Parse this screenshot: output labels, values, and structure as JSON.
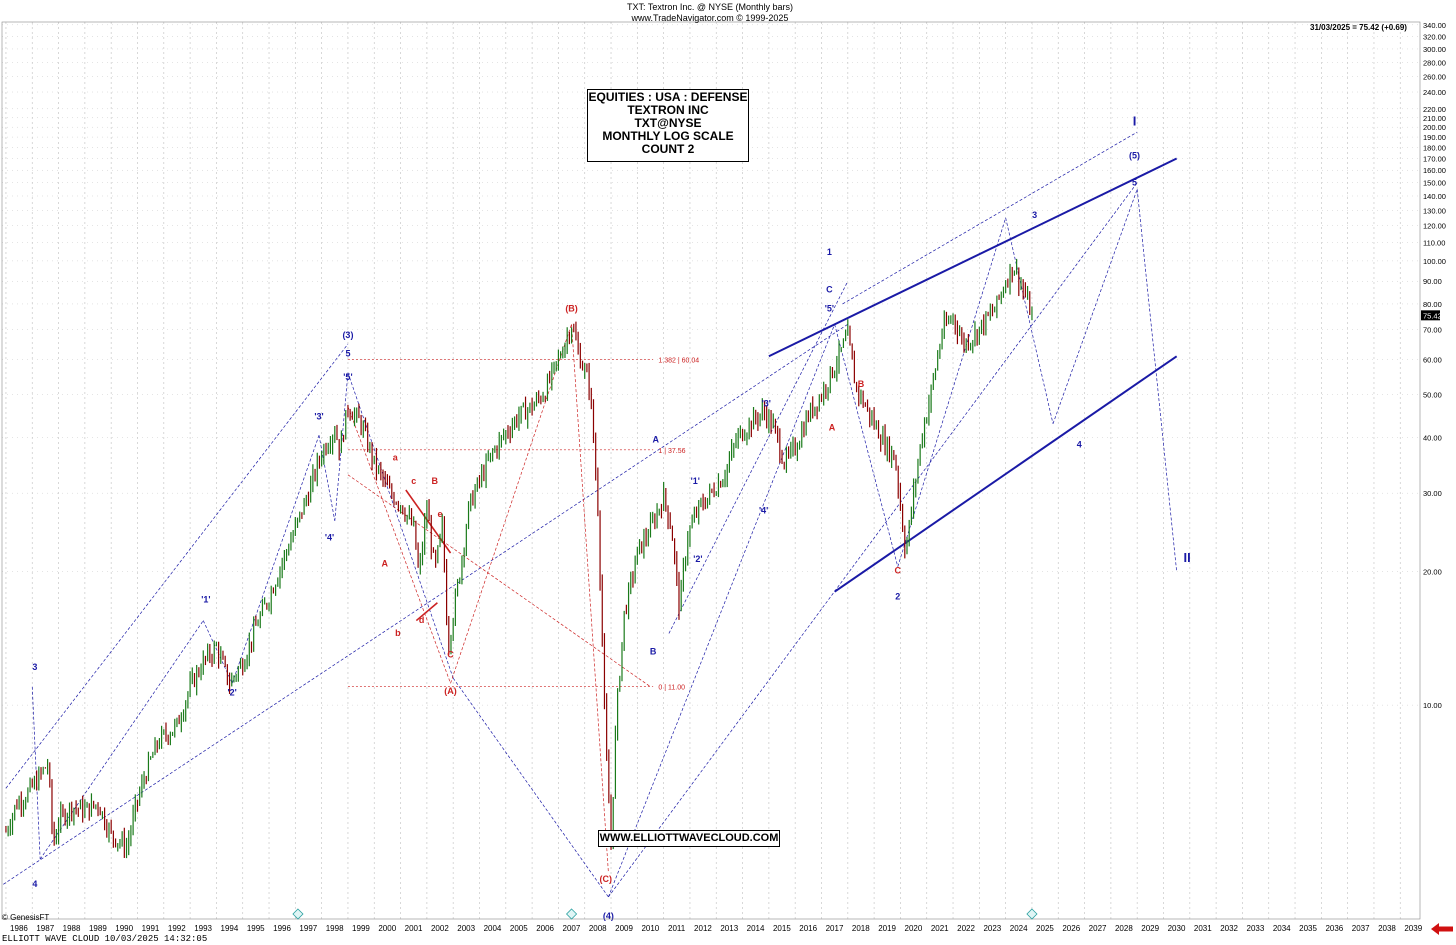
{
  "header": {
    "line1": "TXT:  Textron Inc. @ NYSE  (Monthly bars)",
    "line2": "www.TradeNavigator.com © 1999-2025",
    "last_price_line": "31/03/2025 = 75.42 (+0.69)"
  },
  "info_box": {
    "lines": [
      "EQUITIES : USA : DEFENSE",
      "TEXTRON INC",
      "TXT@NYSE",
      "MONTHLY LOG SCALE",
      "COUNT 2"
    ]
  },
  "website_label": "WWW.ELLIOTTWAVECLOUD.COM",
  "footer": {
    "credit": "© GenesisFT",
    "status": "ELLIOTT WAVE CLOUD   10/03/2025 14:32:05"
  },
  "colors": {
    "price_up": "#1a7a1a",
    "price_down": "#8b0000",
    "wave_blue": "#1a1aa6",
    "wave_red": "#cc2222",
    "grid": "#c8c8c8"
  },
  "icons": [
    "genesis-s-marker-icon",
    "red-left-arrow-icon"
  ],
  "chart_data": {
    "type": "line",
    "scale": "log",
    "x_ticks": [
      "1986",
      "1987",
      "1988",
      "1989",
      "1990",
      "1991",
      "1992",
      "1993",
      "1994",
      "1995",
      "1996",
      "1997",
      "1998",
      "1999",
      "2000",
      "2001",
      "2002",
      "2003",
      "2004",
      "2005",
      "2006",
      "2007",
      "2008",
      "2009",
      "2010",
      "2011",
      "2012",
      "2013",
      "2014",
      "2015",
      "2016",
      "2017",
      "2018",
      "2019",
      "2020",
      "2021",
      "2022",
      "2023",
      "2024",
      "2025",
      "2026",
      "2027",
      "2028",
      "2029",
      "2030",
      "2031",
      "2032",
      "2033",
      "2034",
      "2035",
      "2036",
      "2037",
      "2038",
      "2039"
    ],
    "y_ticks": [
      10,
      20,
      30,
      40,
      50,
      60,
      70,
      80,
      90,
      100,
      110,
      120,
      130,
      140,
      150,
      160,
      170,
      180,
      190,
      200,
      210,
      220,
      240,
      260,
      280,
      300,
      320,
      340
    ],
    "y_tick_labels": [
      "10.00",
      "20.00",
      "30.00",
      "40.00",
      "50.00",
      "60.00",
      "70.00",
      "80.00",
      "90.00",
      "100.00",
      "110.00",
      "120.00",
      "130.00",
      "140.00",
      "150.00",
      "160.00",
      "170.00",
      "180.00",
      "190.00",
      "200.00",
      "210.00",
      "220.00",
      "240.00",
      "260.00",
      "280.00",
      "300.00",
      "320.00",
      "340.00"
    ],
    "ylim": [
      3.3,
      345
    ],
    "xlim": [
      1985.85,
      2039.75
    ],
    "last_price_label": "75.42",
    "series": [
      {
        "values_x": [
          1986.0,
          1986.4,
          1986.8,
          1987.2,
          1987.6,
          1987.8,
          1988.0,
          1988.5,
          1989.0,
          1989.5,
          1990.0,
          1990.6,
          1990.9,
          1991.3,
          1991.8,
          1992.5,
          1993.0,
          1993.5,
          1994.0,
          1994.5,
          1995.0,
          1995.5,
          1996.0,
          1996.5,
          1997.0,
          1997.5,
          1998.0,
          1998.5,
          1998.7,
          1999.0,
          1999.5,
          2000.0,
          2000.6,
          2001.0,
          2001.5,
          2001.7,
          2002.0,
          2002.3,
          2002.6,
          2002.8,
          2003.2,
          2003.6,
          2004.0,
          2004.5,
          2005.0,
          2005.5,
          2006.0,
          2006.5,
          2007.0,
          2007.5,
          2007.8,
          2008.2,
          2008.5,
          2008.8,
          2009.0,
          2009.2,
          2009.5,
          2010.0,
          2010.5,
          2011.0,
          2011.3,
          2011.6,
          2011.9,
          2012.3,
          2012.8,
          2013.3,
          2013.8,
          2014.3,
          2014.8,
          2015.2,
          2015.6,
          2016.0,
          2016.5,
          2017.0,
          2017.5,
          2018.0,
          2018.3,
          2018.6,
          2019.0,
          2019.5,
          2019.8,
          2020.2,
          2020.5,
          2020.8,
          2021.2,
          2021.6,
          2022.0,
          2022.4,
          2022.8,
          2023.2,
          2023.6,
          2024.0,
          2024.3,
          2024.7,
          2025.0
        ],
        "values_y": [
          5.2,
          6.0,
          6.3,
          6.8,
          7.4,
          4.8,
          5.5,
          5.9,
          5.8,
          6.0,
          5.1,
          4.8,
          5.8,
          7.0,
          8.3,
          9.0,
          11.0,
          12.5,
          13.5,
          11.2,
          12.5,
          15.0,
          17.5,
          21.0,
          25.0,
          30.0,
          37.0,
          42.0,
          37.5,
          47.0,
          43.0,
          35.0,
          30.0,
          28.5,
          25.0,
          19.5,
          28.0,
          20.0,
          25.5,
          13.5,
          19.0,
          28.0,
          32.0,
          37.0,
          41.0,
          45.0,
          47.0,
          51.0,
          60.0,
          72.0,
          61.0,
          52.0,
          28.0,
          8.0,
          4.9,
          9.5,
          16.0,
          22.0,
          25.0,
          29.5,
          25.0,
          16.5,
          24.0,
          27.5,
          30.0,
          33.0,
          40.0,
          43.0,
          46.0,
          42.0,
          35.0,
          38.0,
          45.0,
          50.0,
          58.0,
          68.0,
          52.0,
          48.0,
          43.0,
          38.0,
          36.0,
          22.0,
          30.0,
          40.0,
          52.0,
          70.0,
          75.0,
          65.0,
          68.0,
          73.0,
          78.0,
          90.0,
          98.0,
          85.0,
          75.42
        ]
      }
    ],
    "wave_labels_blue": [
      "3",
      "4",
      "'1'",
      "'2'",
      "'3'",
      "'4'",
      "'5'",
      "5",
      "(3)",
      "(4)",
      "A",
      "B",
      "'1'",
      "'2'",
      "'3'",
      "'4'",
      "'5'",
      "C",
      "1",
      "2",
      "3",
      "4",
      "5",
      "(5)",
      "I",
      "II"
    ],
    "wave_labels_red": [
      "A",
      "a",
      "b",
      "c",
      "B",
      "C",
      "(A)",
      "(B)",
      "(C)",
      "A",
      "B",
      "C",
      "d",
      "e"
    ],
    "fib_levels": [
      {
        "label": "1.382 | 60.04",
        "value": 60.04
      },
      {
        "label": "1 | 37.56",
        "value": 37.56
      },
      {
        "label": "0 | 11.00",
        "value": 11.0
      }
    ]
  }
}
